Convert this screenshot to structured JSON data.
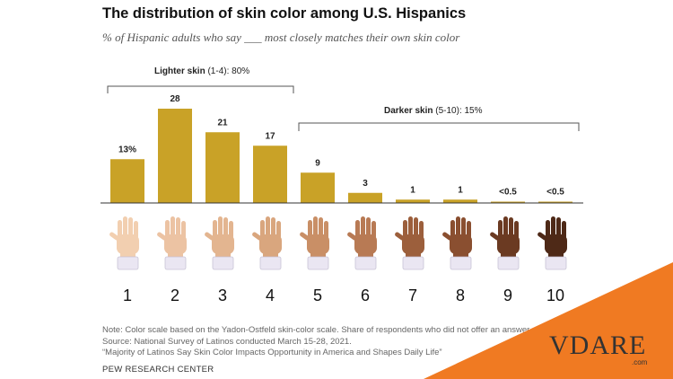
{
  "title": "The distribution of skin color among U.S. Hispanics",
  "subtitle": "% of Hispanic adults who say ___ most closely matches their own skin color",
  "brackets": {
    "lighter": {
      "bold": "Lighter skin",
      "rest": " (1-4): 80%"
    },
    "darker": {
      "bold": "Darker skin",
      "rest": " (5-10): 15%"
    }
  },
  "colors": {
    "bar": "#c9a227",
    "corner": "#f07a22",
    "hand_tones": [
      "#f2cfb0",
      "#ecc3a3",
      "#e3b590",
      "#d9a67e",
      "#c98f66",
      "#b87a54",
      "#9c5f3c",
      "#8a4f30",
      "#6b3a22",
      "#4e2917"
    ],
    "cuff": "#eae6f2"
  },
  "chart_data": {
    "type": "bar",
    "categories": [
      "1",
      "2",
      "3",
      "4",
      "5",
      "6",
      "7",
      "8",
      "9",
      "10"
    ],
    "values": [
      13,
      28,
      21,
      17,
      9,
      3,
      1,
      1,
      0.4,
      0.4
    ],
    "data_labels": [
      "13%",
      "28",
      "21",
      "17",
      "9",
      "3",
      "1",
      "1",
      "<0.5",
      "<0.5"
    ],
    "title": "The distribution of skin color among U.S. Hispanics",
    "xlabel": "",
    "ylabel": "",
    "ylim": [
      0,
      28
    ],
    "grid": false,
    "legend": "none"
  },
  "notes": [
    "Note: Color scale based on the Yadon-Ostfeld skin-color scale. Share of respondents who did not offer an answer not shown.",
    "Source: National Survey of Latinos conducted March 15-28, 2021.",
    "“Majority of Latinos Say Skin Color Impacts Opportunity in America and Shapes Daily Life”"
  ],
  "source_org": "PEW RESEARCH CENTER",
  "watermark": {
    "text": "VDARE",
    "sub": ".com"
  }
}
